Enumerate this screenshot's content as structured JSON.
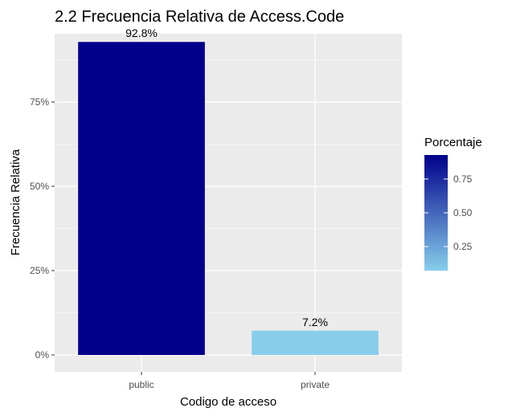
{
  "chart_data": {
    "type": "bar",
    "title": "2.2 Frecuencia Relativa de Access.Code",
    "xlabel": "Codigo de acceso",
    "ylabel": "Frecuencia Relativa",
    "categories": [
      "public",
      "private"
    ],
    "values": [
      0.928,
      0.072
    ],
    "value_labels": [
      "92.8%",
      "7.2%"
    ],
    "ylim": [
      0,
      0.97
    ],
    "yticks": [
      0,
      0.25,
      0.5,
      0.75
    ],
    "ytick_labels": [
      "0%",
      "25%",
      "50%",
      "75%"
    ],
    "grid": true,
    "legend": {
      "title": "Porcentaje",
      "position": "right",
      "type": "colorbar",
      "range": [
        0.072,
        0.928
      ],
      "ticks": [
        0.25,
        0.5,
        0.75
      ],
      "tick_labels": [
        "0.25",
        "0.50",
        "0.75"
      ],
      "low_color": "#87ceeb",
      "high_color": "#00008b"
    },
    "colors": {
      "panel_background": "#ebebeb",
      "grid": "#ffffff"
    }
  }
}
